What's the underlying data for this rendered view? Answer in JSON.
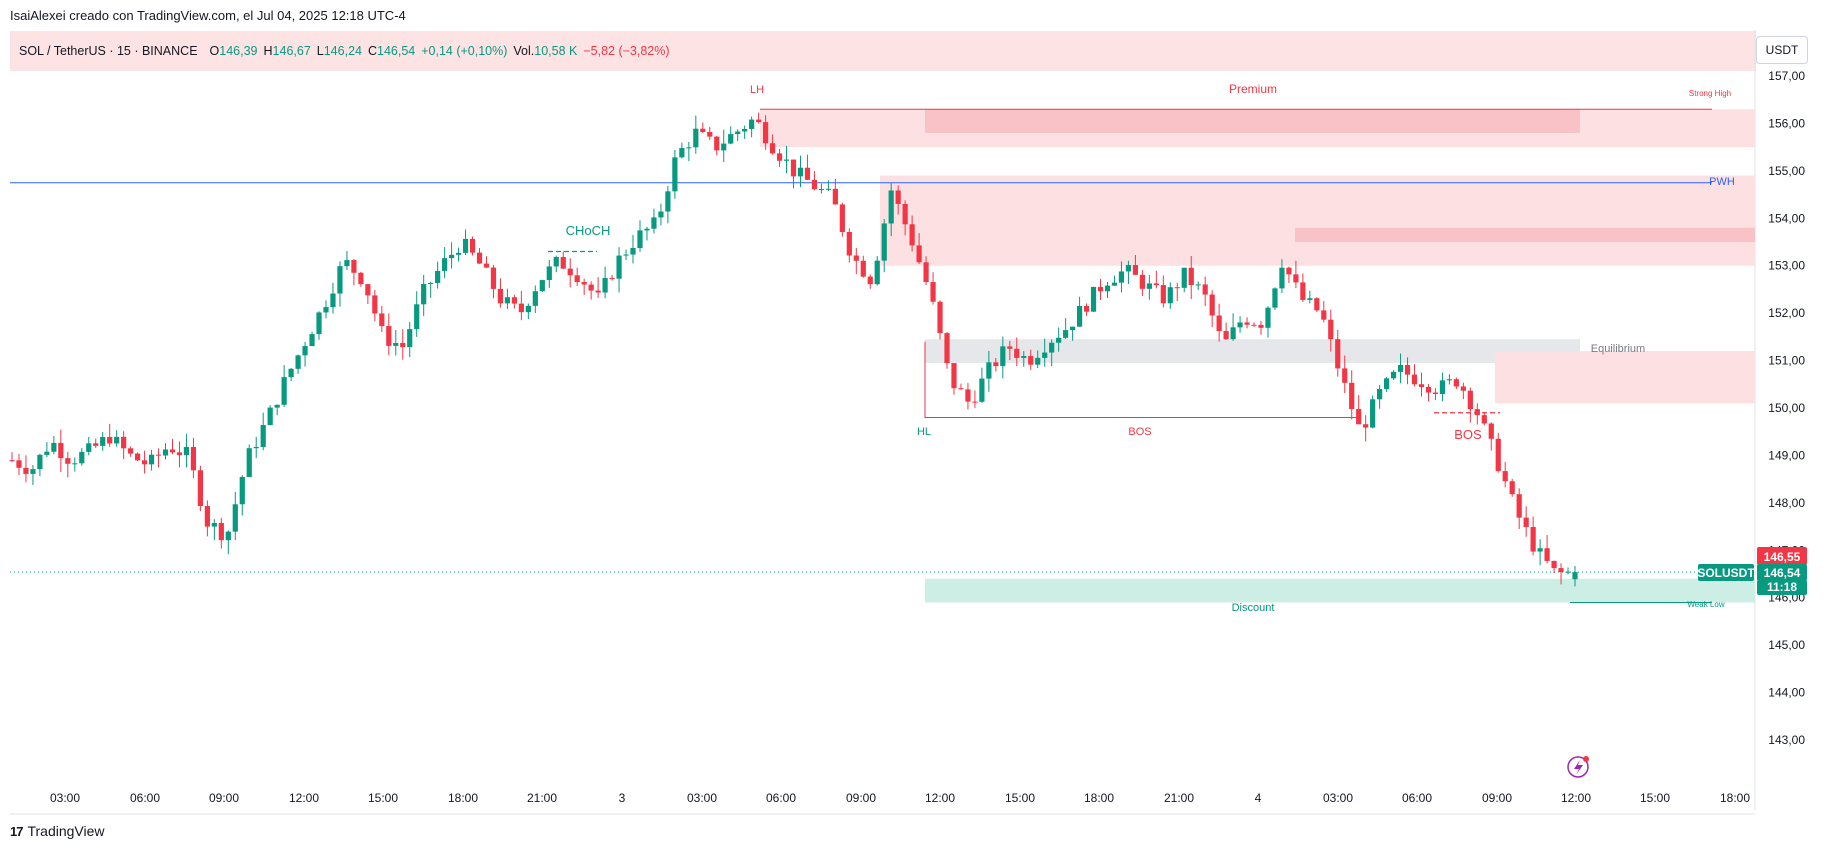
{
  "credit": "IsaiAlexei creado con TradingView.com, el Jul 04, 2025 12:18 UTC-4",
  "legend": {
    "symbol": "SOL / TetherUS · 15 · BINANCE",
    "o_label": "O",
    "o_value": "146,39",
    "h_label": "H",
    "h_value": "146,67",
    "l_label": "L",
    "l_value": "146,24",
    "c_label": "C",
    "c_value": "146,54",
    "change": "+0,14 (+0,10%)",
    "vol_label": "Vol.",
    "vol_value": "10,58 K",
    "vol_change": "−5,82 (−3,82%)"
  },
  "unit_button": "USDT",
  "footer": {
    "logo_mark": "17",
    "brand": "TradingView"
  },
  "colors": {
    "up": "#089981",
    "down": "#f23645",
    "pwh": "#2962ff",
    "zone_red": "#fde0e2",
    "zone_gray": "#e6e7ea",
    "zone_green": "#cdeee5"
  },
  "chart_data": {
    "type": "candlestick",
    "symbol": "SOLUSDT",
    "timeframe": "15",
    "ylim": [
      142.4,
      157.4
    ],
    "y_ticks": [
      "157,00",
      "156,00",
      "155,00",
      "154,00",
      "153,00",
      "152,00",
      "151,00",
      "150,00",
      "149,00",
      "148,00",
      "147,00",
      "146,00",
      "145,00",
      "144,00",
      "143,00"
    ],
    "x_ticks": [
      "03:00",
      "06:00",
      "09:00",
      "12:00",
      "15:00",
      "18:00",
      "21:00",
      "3",
      "03:00",
      "06:00",
      "09:00",
      "12:00",
      "15:00",
      "18:00",
      "21:00",
      "4",
      "03:00",
      "06:00",
      "09:00",
      "12:00",
      "15:00",
      "18:00"
    ],
    "price_path": [
      [
        0,
        148.9
      ],
      [
        1,
        148.7
      ],
      [
        2,
        149.3
      ],
      [
        3,
        148.9
      ],
      [
        4,
        149.1
      ],
      [
        5,
        149.4
      ],
      [
        6,
        149.0
      ],
      [
        7,
        148.8
      ],
      [
        8,
        149.2
      ],
      [
        9,
        149.0
      ],
      [
        10,
        147.6
      ],
      [
        11,
        147.3
      ],
      [
        12,
        148.9
      ],
      [
        13,
        149.7
      ],
      [
        14,
        150.6
      ],
      [
        15,
        151.4
      ],
      [
        16,
        152.2
      ],
      [
        17,
        153.1
      ],
      [
        18,
        152.7
      ],
      [
        19,
        151.5
      ],
      [
        20,
        151.3
      ],
      [
        21,
        152.4
      ],
      [
        22,
        153.0
      ],
      [
        23,
        153.5
      ],
      [
        24,
        153.0
      ],
      [
        25,
        152.3
      ],
      [
        26,
        152.0
      ],
      [
        27,
        152.7
      ],
      [
        28,
        153.1
      ],
      [
        29,
        152.8
      ],
      [
        30,
        152.3
      ],
      [
        31,
        153.1
      ],
      [
        32,
        153.6
      ],
      [
        33,
        153.9
      ],
      [
        34,
        155.3
      ],
      [
        35,
        155.8
      ],
      [
        36,
        155.5
      ],
      [
        37,
        155.8
      ],
      [
        38,
        156.1
      ],
      [
        39,
        155.5
      ],
      [
        40,
        155.0
      ],
      [
        41,
        154.7
      ],
      [
        42,
        154.4
      ],
      [
        43,
        153.2
      ],
      [
        44,
        152.7
      ],
      [
        45,
        154.6
      ],
      [
        46,
        153.6
      ],
      [
        47,
        152.4
      ],
      [
        48,
        150.6
      ],
      [
        49,
        150.1
      ],
      [
        50,
        150.8
      ],
      [
        51,
        151.3
      ],
      [
        52,
        151.0
      ],
      [
        53,
        151.4
      ],
      [
        54,
        151.7
      ],
      [
        55,
        152.2
      ],
      [
        56,
        152.7
      ],
      [
        57,
        152.9
      ],
      [
        58,
        152.6
      ],
      [
        59,
        152.3
      ],
      [
        60,
        152.8
      ],
      [
        61,
        152.4
      ],
      [
        62,
        151.3
      ],
      [
        63,
        151.9
      ],
      [
        64,
        151.8
      ],
      [
        65,
        153.1
      ],
      [
        66,
        152.3
      ],
      [
        67,
        152.0
      ],
      [
        68,
        150.7
      ],
      [
        69,
        149.5
      ],
      [
        70,
        150.3
      ],
      [
        71,
        150.8
      ],
      [
        72,
        150.6
      ],
      [
        73,
        150.4
      ],
      [
        74,
        150.6
      ],
      [
        75,
        149.9
      ],
      [
        76,
        148.9
      ],
      [
        77,
        147.8
      ],
      [
        78,
        147.0
      ],
      [
        79,
        146.5
      ],
      [
        80,
        146.54
      ]
    ],
    "last_candle": {
      "o": 146.39,
      "h": 146.67,
      "l": 146.24,
      "c": 146.54
    },
    "horizontal_lines": [
      {
        "name": "PWH",
        "price": 154.75,
        "color": "#2962ff"
      },
      {
        "name": "Strong High",
        "price": 156.3,
        "color": "#f23645"
      },
      {
        "name": "Weak Low",
        "price": 145.9,
        "color": "#089981"
      }
    ],
    "zones": [
      {
        "label": "Premium",
        "from": 156.3,
        "to": 155.5,
        "color": "#fde0e2"
      },
      {
        "label": "",
        "from": 156.3,
        "to": 155.8,
        "color": "#f8c2c7"
      },
      {
        "label": "",
        "from": 154.9,
        "to": 153.0,
        "color": "#fde0e2"
      },
      {
        "label": "",
        "from": 153.8,
        "to": 153.5,
        "color": "#f8c2c7"
      },
      {
        "label": "Equilibrium",
        "from": 151.45,
        "to": 150.95,
        "color": "#e6e7ea"
      },
      {
        "label": "",
        "from": 151.2,
        "to": 150.1,
        "color": "#fde0e2"
      },
      {
        "label": "Discount",
        "from": 146.4,
        "to": 145.9,
        "color": "#cdeee5"
      }
    ],
    "structure_labels": [
      {
        "text": "LH",
        "kind": "bearish"
      },
      {
        "text": "CHoCH",
        "kind": "bullish"
      },
      {
        "text": "HL",
        "kind": "bullish"
      },
      {
        "text": "BOS",
        "kind": "bearish"
      },
      {
        "text": "BOS",
        "kind": "bearish"
      }
    ],
    "level_labels": [
      "Premium",
      "Strong High",
      "PWH",
      "Equilibrium",
      "Discount",
      "Weak Low"
    ],
    "price_badges": [
      {
        "text": "146,55",
        "color": "#f23645"
      },
      {
        "text": "146,54",
        "color": "#089981"
      },
      {
        "text": "11:18",
        "color": "#089981"
      },
      {
        "text": "SOLUSDT",
        "color": "#089981"
      }
    ],
    "grid": true
  }
}
